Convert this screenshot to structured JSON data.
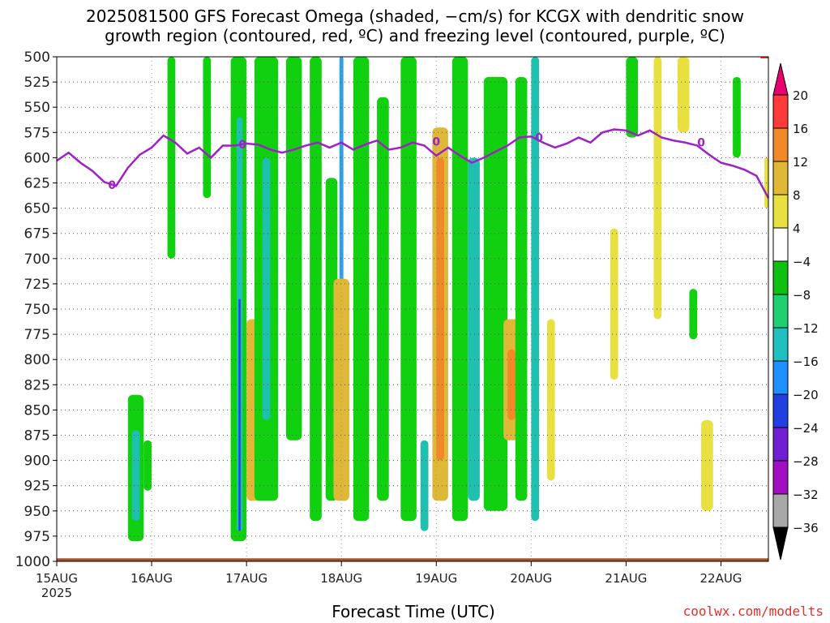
{
  "title_line1": "2025081500 GFS Forecast Omega (shaded, −cm/s) for KCGX with dendritic snow",
  "title_line2": "growth region (contoured, red, ºC) and freezing level (contoured, purple, ºC)",
  "xlabel": "Forecast Time (UTC)",
  "credit": "coolwx.com/modelts",
  "colors": {
    "freezing_line": "#a020c8",
    "dgz_line": "#ff3030",
    "terrain": "#a0522d",
    "grid": "#555555"
  },
  "colorbar": {
    "labels": [
      "20",
      "16",
      "12",
      "8",
      "4",
      "−4",
      "−8",
      "−12",
      "−16",
      "−20",
      "−24",
      "−28",
      "−32",
      "−36"
    ],
    "colors": [
      "#e8006e",
      "#ff3a3a",
      "#f08a28",
      "#e0b838",
      "#e8e040",
      "#ffffff",
      "#10c010",
      "#20d070",
      "#20c0c0",
      "#1e90ff",
      "#2040e0",
      "#7020d0",
      "#a010c0",
      "#a8a8a8",
      "#000000"
    ]
  },
  "chart_data": {
    "type": "heatmap",
    "title": "2025081500 GFS Forecast Omega (shaded, −cm/s) for KCGX with dendritic snow growth region (contoured, red, ºC) and freezing level (contoured, purple, ºC)",
    "xlabel": "Forecast Time (UTC)",
    "ylabel": "",
    "y_reversed": true,
    "ylim": [
      1000,
      500
    ],
    "xlim": [
      0,
      180
    ],
    "x_unit": "hours since 15AUG 00Z",
    "grid": true,
    "x_ticks": [
      {
        "x": 0,
        "label": "15AUG",
        "sublabel": "2025"
      },
      {
        "x": 24,
        "label": "16AUG"
      },
      {
        "x": 48,
        "label": "17AUG"
      },
      {
        "x": 72,
        "label": "18AUG"
      },
      {
        "x": 96,
        "label": "19AUG"
      },
      {
        "x": 120,
        "label": "20AUG"
      },
      {
        "x": 144,
        "label": "21AUG"
      },
      {
        "x": 168,
        "label": "22AUG"
      }
    ],
    "y_ticks": [
      500,
      525,
      550,
      575,
      600,
      625,
      650,
      675,
      700,
      725,
      750,
      775,
      800,
      825,
      850,
      875,
      900,
      925,
      950,
      975,
      1000
    ],
    "freezing_level": {
      "name": "0ºC",
      "label": "0",
      "x": [
        0,
        3,
        6,
        9,
        12,
        15,
        18,
        21,
        24,
        27,
        30,
        33,
        36,
        39,
        42,
        45,
        48,
        51,
        54,
        57,
        60,
        63,
        66,
        69,
        72,
        75,
        78,
        81,
        84,
        87,
        90,
        93,
        96,
        99,
        102,
        105,
        108,
        111,
        114,
        117,
        120,
        123,
        126,
        129,
        132,
        135,
        138,
        141,
        144,
        147,
        150,
        153,
        156,
        159,
        162,
        165,
        168,
        171,
        174,
        177,
        180
      ],
      "y": [
        603,
        595,
        605,
        613,
        624,
        628,
        610,
        597,
        590,
        578,
        585,
        596,
        590,
        600,
        588,
        588,
        586,
        587,
        592,
        595,
        592,
        588,
        585,
        590,
        585,
        592,
        587,
        583,
        592,
        590,
        585,
        588,
        598,
        590,
        598,
        605,
        600,
        594,
        588,
        580,
        579,
        585,
        590,
        586,
        580,
        585,
        575,
        572,
        573,
        578,
        573,
        580,
        583,
        585,
        588,
        597,
        605,
        608,
        612,
        618,
        640
      ]
    },
    "label_positions": [
      {
        "x": 14,
        "y": 627
      },
      {
        "x": 47,
        "y": 587
      },
      {
        "x": 96,
        "y": 584
      },
      {
        "x": 122,
        "y": 580
      },
      {
        "x": 163,
        "y": 585
      }
    ],
    "dgz_segment": {
      "x": [
        178,
        180
      ],
      "y": [
        500,
        500
      ]
    },
    "omega_regions": [
      {
        "x": [
          18,
          22
        ],
        "p": [
          835,
          980
        ],
        "v": -8
      },
      {
        "x": [
          19,
          21
        ],
        "p": [
          870,
          960
        ],
        "v": -12
      },
      {
        "x": [
          22,
          24
        ],
        "p": [
          880,
          930
        ],
        "v": -8
      },
      {
        "x": [
          28,
          30
        ],
        "p": [
          500,
          700
        ],
        "v": -8
      },
      {
        "x": [
          37,
          39
        ],
        "p": [
          500,
          640
        ],
        "v": -8
      },
      {
        "x": [
          44,
          48
        ],
        "p": [
          500,
          980
        ],
        "v": -8
      },
      {
        "x": [
          45.5,
          47
        ],
        "p": [
          560,
          970
        ],
        "v": -12
      },
      {
        "x": [
          46,
          46.5
        ],
        "p": [
          740,
          970
        ],
        "v": -20
      },
      {
        "x": [
          48,
          52
        ],
        "p": [
          760,
          940
        ],
        "v": 8
      },
      {
        "x": [
          50,
          56
        ],
        "p": [
          500,
          940
        ],
        "v": -8
      },
      {
        "x": [
          52,
          54
        ],
        "p": [
          600,
          860
        ],
        "v": -12
      },
      {
        "x": [
          58,
          62
        ],
        "p": [
          500,
          880
        ],
        "v": -8
      },
      {
        "x": [
          64,
          67
        ],
        "p": [
          500,
          960
        ],
        "v": -8
      },
      {
        "x": [
          68,
          71
        ],
        "p": [
          620,
          940
        ],
        "v": -8
      },
      {
        "x": [
          71.5,
          72.5
        ],
        "p": [
          500,
          860
        ],
        "v": -16
      },
      {
        "x": [
          70,
          74
        ],
        "p": [
          720,
          940
        ],
        "v": 8
      },
      {
        "x": [
          75,
          79
        ],
        "p": [
          500,
          960
        ],
        "v": -8
      },
      {
        "x": [
          81,
          84
        ],
        "p": [
          540,
          940
        ],
        "v": -8
      },
      {
        "x": [
          87,
          91
        ],
        "p": [
          500,
          960
        ],
        "v": -8
      },
      {
        "x": [
          92,
          94
        ],
        "p": [
          880,
          970
        ],
        "v": -12
      },
      {
        "x": [
          95,
          99
        ],
        "p": [
          570,
          940
        ],
        "v": 8
      },
      {
        "x": [
          96,
          98
        ],
        "p": [
          600,
          900
        ],
        "v": 12
      },
      {
        "x": [
          100,
          104
        ],
        "p": [
          500,
          960
        ],
        "v": -8
      },
      {
        "x": [
          104,
          107
        ],
        "p": [
          600,
          940
        ],
        "v": -12
      },
      {
        "x": [
          108,
          114
        ],
        "p": [
          520,
          950
        ],
        "v": -8
      },
      {
        "x": [
          113,
          117
        ],
        "p": [
          760,
          880
        ],
        "v": 8
      },
      {
        "x": [
          114,
          116
        ],
        "p": [
          790,
          860
        ],
        "v": 12
      },
      {
        "x": [
          116,
          119
        ],
        "p": [
          520,
          940
        ],
        "v": -8
      },
      {
        "x": [
          120,
          122
        ],
        "p": [
          500,
          960
        ],
        "v": -12
      },
      {
        "x": [
          124,
          126
        ],
        "p": [
          760,
          920
        ],
        "v": 4
      },
      {
        "x": [
          144,
          147
        ],
        "p": [
          500,
          580
        ],
        "v": -8
      },
      {
        "x": [
          140,
          142
        ],
        "p": [
          670,
          820
        ],
        "v": 4
      },
      {
        "x": [
          151,
          153
        ],
        "p": [
          500,
          760
        ],
        "v": 4
      },
      {
        "x": [
          160,
          162
        ],
        "p": [
          730,
          780
        ],
        "v": -8
      },
      {
        "x": [
          157,
          160
        ],
        "p": [
          500,
          575
        ],
        "v": 4
      },
      {
        "x": [
          163,
          166
        ],
        "p": [
          860,
          950
        ],
        "v": 4
      },
      {
        "x": [
          171,
          173
        ],
        "p": [
          520,
          600
        ],
        "v": -8
      },
      {
        "x": [
          179,
          180
        ],
        "p": [
          600,
          650
        ],
        "v": 4
      }
    ],
    "terrain_surface": {
      "p": 997
    }
  }
}
